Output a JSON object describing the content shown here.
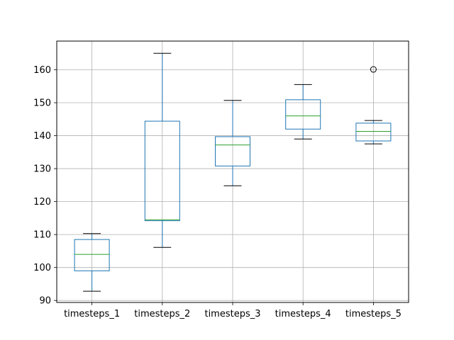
{
  "chart_data": {
    "type": "box",
    "categories": [
      "timesteps_1",
      "timesteps_2",
      "timesteps_3",
      "timesteps_4",
      "timesteps_5"
    ],
    "boxes": [
      {
        "name": "timesteps_1",
        "whisker_low": 92.8,
        "q1": 99.0,
        "median": 104.0,
        "q3": 108.5,
        "whisker_high": 110.3,
        "outliers": []
      },
      {
        "name": "timesteps_2",
        "whisker_low": 106.1,
        "q1": 114.2,
        "median": 114.5,
        "q3": 144.4,
        "whisker_high": 165.0,
        "outliers": []
      },
      {
        "name": "timesteps_3",
        "whisker_low": 124.8,
        "q1": 130.8,
        "median": 137.2,
        "q3": 139.7,
        "whisker_high": 150.7,
        "outliers": []
      },
      {
        "name": "timesteps_4",
        "whisker_low": 139.0,
        "q1": 142.0,
        "median": 146.0,
        "q3": 150.9,
        "whisker_high": 155.5,
        "outliers": []
      },
      {
        "name": "timesteps_5",
        "whisker_low": 137.5,
        "q1": 138.4,
        "median": 141.3,
        "q3": 143.8,
        "whisker_high": 144.6,
        "outliers": [
          160.1
        ]
      }
    ],
    "yticks": [
      90,
      100,
      110,
      120,
      130,
      140,
      150,
      160
    ],
    "ylim": [
      89.4,
      168.7
    ],
    "grid": true,
    "title": "",
    "xlabel": "",
    "ylabel": "",
    "colors": {
      "box": "#1f77b4",
      "median": "#2ca02c",
      "whisker": "#1f77b4",
      "cap": "#000000",
      "grid": "#b0b0b0",
      "axes": "#000000"
    }
  }
}
